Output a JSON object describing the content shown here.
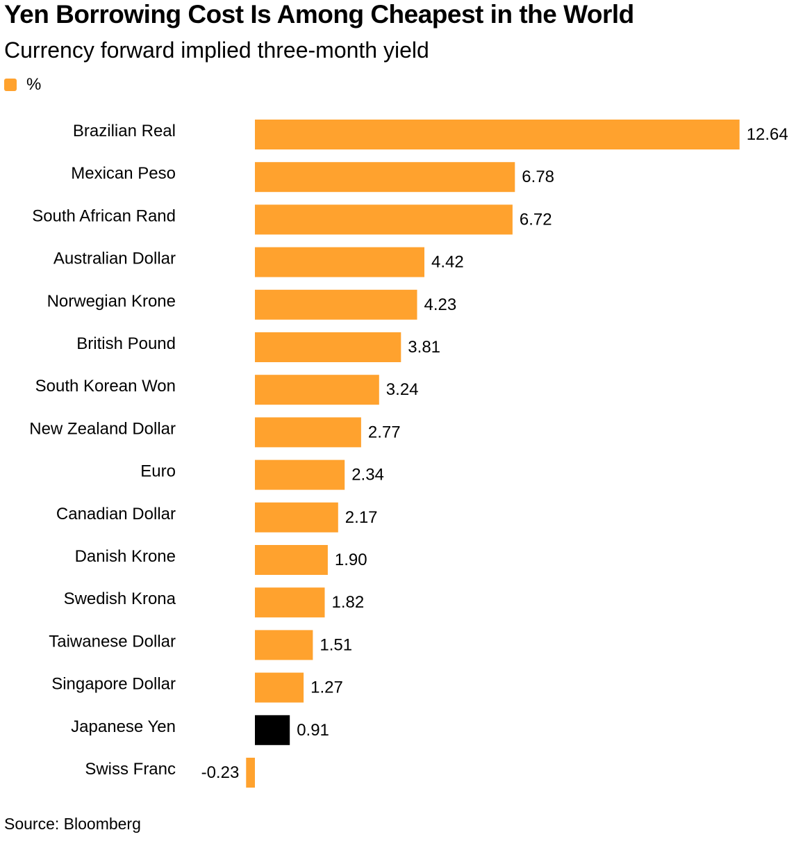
{
  "chart_data": {
    "type": "bar",
    "orientation": "horizontal",
    "title": "Yen Borrowing Cost Is Among Cheapest in the World",
    "subtitle": "Currency forward implied three-month yield",
    "legend": {
      "label": "%",
      "placement": "top-left"
    },
    "source": "Source: Bloomberg",
    "categories": [
      "Brazilian Real",
      "Mexican Peso",
      "South African Rand",
      "Australian Dollar",
      "Norwegian Krone",
      "British Pound",
      "South Korean Won",
      "New Zealand Dollar",
      "Euro",
      "Canadian Dollar",
      "Danish Krone",
      "Swedish Krona",
      "Taiwanese Dollar",
      "Singapore Dollar",
      "Japanese Yen",
      "Swiss Franc"
    ],
    "values": [
      12.64,
      6.78,
      6.72,
      4.42,
      4.23,
      3.81,
      3.24,
      2.77,
      2.34,
      2.17,
      1.9,
      1.82,
      1.51,
      1.27,
      0.91,
      -0.23
    ],
    "value_labels": [
      "12.64",
      "6.78",
      "6.72",
      "4.42",
      "4.23",
      "3.81",
      "3.24",
      "2.77",
      "2.34",
      "2.17",
      "1.90",
      "1.82",
      "1.51",
      "1.27",
      "0.91",
      "-0.23"
    ],
    "highlight": "Japanese Yen",
    "xlim": [
      -0.23,
      12.64
    ],
    "grid": false
  },
  "colors": {
    "bar": "#ffa22e",
    "highlight": "#000000",
    "text": "#000000"
  }
}
